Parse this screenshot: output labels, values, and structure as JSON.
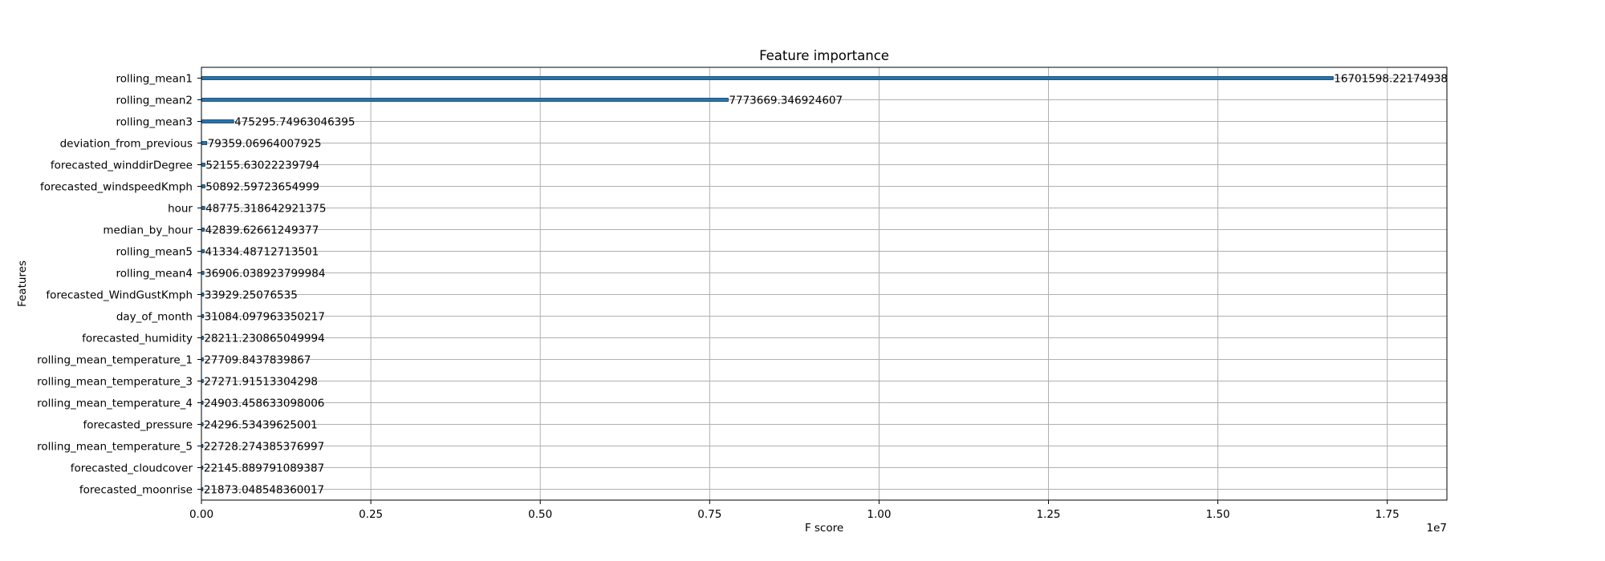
{
  "chart_data": {
    "type": "bar",
    "orientation": "horizontal",
    "title": "Feature importance",
    "xlabel": "F score",
    "ylabel": "Features",
    "x_offset_label": "1e7",
    "xlim": [
      0,
      18380000
    ],
    "x_ticks": [
      0,
      2500000,
      5000000,
      7500000,
      10000000,
      12500000,
      15000000,
      17500000
    ],
    "x_tick_labels": [
      "0.00",
      "0.25",
      "0.50",
      "0.75",
      "1.00",
      "1.25",
      "1.50",
      "1.75"
    ],
    "grid": true,
    "bar_color": "#1f77b4",
    "categories": [
      "rolling_mean1",
      "rolling_mean2",
      "rolling_mean3",
      "deviation_from_previous",
      "forecasted_winddirDegree",
      "forecasted_windspeedKmph",
      "hour",
      "median_by_hour",
      "rolling_mean5",
      "rolling_mean4",
      "forecasted_WindGustKmph",
      "day_of_month",
      "forecasted_humidity",
      "rolling_mean_temperature_1",
      "rolling_mean_temperature_3",
      "rolling_mean_temperature_4",
      "forecasted_pressure",
      "rolling_mean_temperature_5",
      "forecasted_cloudcover",
      "forecasted_moonrise"
    ],
    "values": [
      16701598.22174938,
      7773669.346924607,
      475295.74963046395,
      79359.06964007925,
      52155.63022239794,
      50892.59723654999,
      48775.318642921375,
      42839.62661249377,
      41334.48712713501,
      36906.038923799984,
      33929.25076535,
      31084.097963350217,
      28211.230865049994,
      27709.8437839867,
      27271.91513304298,
      24903.458633098006,
      24296.53439625001,
      22728.274385376997,
      22145.889791089387,
      21873.048548360017
    ],
    "value_labels": [
      "16701598.22174938",
      "7773669.346924607",
      "475295.74963046395",
      "79359.06964007925",
      "52155.63022239794",
      "50892.59723654999",
      "48775.318642921375",
      "42839.62661249377",
      "41334.48712713501",
      "36906.038923799984",
      "33929.25076535",
      "31084.097963350217",
      "28211.230865049994",
      "27709.8437839867",
      "27271.91513304298",
      "24903.458633098006",
      "24296.53439625001",
      "22728.274385376997",
      "22145.889791089387",
      "21873.048548360017"
    ]
  }
}
